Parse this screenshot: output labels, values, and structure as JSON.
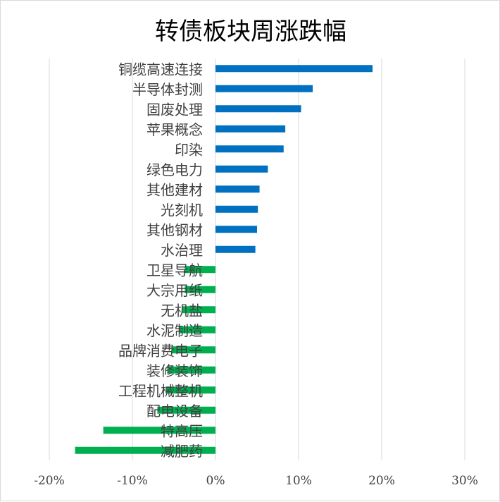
{
  "chart_data": {
    "type": "bar",
    "orientation": "horizontal",
    "title": "转债板块周涨跌幅",
    "categories": [
      "铜缆高速连接",
      "半导体封测",
      "固废处理",
      "苹果概念",
      "印染",
      "绿色电力",
      "其他建材",
      "光刻机",
      "其他钢材",
      "水治理",
      "卫星导航",
      "大宗用纸",
      "无机盐",
      "水泥制造",
      "品牌消费电子",
      "装修装饰",
      "工程机械整机",
      "配电设备",
      "特高压",
      "减肥药"
    ],
    "values": [
      18.9,
      11.7,
      10.3,
      8.4,
      8.2,
      6.3,
      5.3,
      5.1,
      5.0,
      4.8,
      -3.7,
      -3.7,
      -4.0,
      -4.4,
      -5.3,
      -5.8,
      -6.0,
      -7.0,
      -13.5,
      -16.9
    ],
    "unit": "%",
    "xlim": [
      -20,
      30
    ],
    "xticks": [
      "-20%",
      "-10%",
      "0%",
      "10%",
      "20%",
      "30%"
    ],
    "grid": true,
    "colors": {
      "positive": "#0070c0",
      "negative": "#00b050",
      "grid": "#d9d9d9"
    }
  }
}
